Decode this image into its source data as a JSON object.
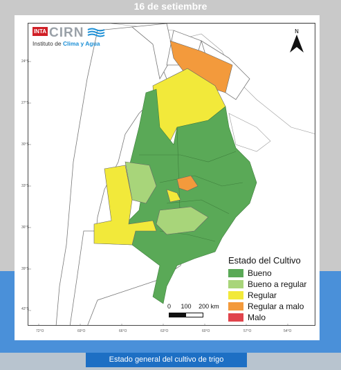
{
  "header": {
    "date": "16 de setiembre"
  },
  "logo": {
    "badge": "INTA",
    "name": "CIRN",
    "subtitle_prefix": "Instituto de",
    "subtitle_highlight": "Clima y Agua"
  },
  "north_arrow": {
    "label": "N"
  },
  "legend": {
    "title": "Estado del Cultivo",
    "items": [
      {
        "label": "Bueno",
        "color": "#5aa957"
      },
      {
        "label": "Bueno a regular",
        "color": "#a8d57a"
      },
      {
        "label": "Regular",
        "color": "#f2e93a"
      },
      {
        "label": "Regular a malo",
        "color": "#f39a3c"
      },
      {
        "label": "Malo",
        "color": "#e0444c"
      }
    ]
  },
  "scale_bar": {
    "labels": [
      "0",
      "100",
      "200 km"
    ]
  },
  "axis_labels": {
    "latitude": [
      "24°S",
      "27°S",
      "30°S",
      "33°S",
      "36°S",
      "39°S",
      "42°S"
    ],
    "longitude": [
      "72°O",
      "69°O",
      "66°O",
      "63°O",
      "60°O",
      "57°O",
      "54°O"
    ]
  },
  "caption": "Estado general del cultivo de trigo",
  "colors": {
    "background": "#c9c9c9",
    "blue_band": "#4a90d9",
    "caption_bg": "#1d6fc4"
  }
}
